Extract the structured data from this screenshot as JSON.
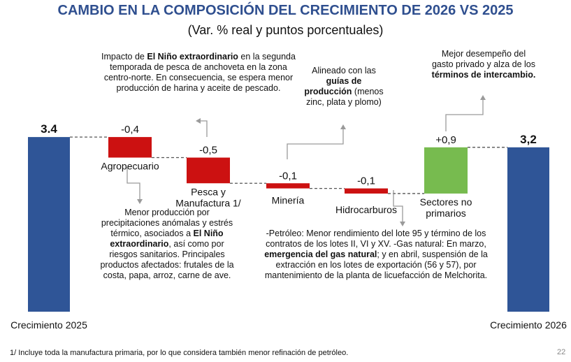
{
  "title": "CAMBIO EN LA COMPOSICIÓN DEL CRECIMIENTO DE 2026 VS 2025",
  "subtitle": "(Var. % real y puntos porcentuales)",
  "chart_data": {
    "type": "bar",
    "subtype": "waterfall",
    "categories": [
      "Crecimiento 2025",
      "Agropecuario",
      "Pesca y Manufactura 1/",
      "Minería",
      "Hidrocarburos",
      "Sectores no primarios",
      "Crecimiento 2026"
    ],
    "values": [
      3.4,
      -0.4,
      -0.5,
      -0.1,
      -0.1,
      0.9,
      3.2
    ],
    "value_labels": [
      "3.4",
      "-0,4",
      "-0,5",
      "-0,1",
      "-0,1",
      "+0,9",
      "3,2"
    ],
    "bar_kinds": [
      "total",
      "delta",
      "delta",
      "delta",
      "delta",
      "delta",
      "total"
    ],
    "colors": {
      "total": "#2f5597",
      "negative": "#cc1111",
      "positive": "#77bb4f",
      "connector": "#555555",
      "arrow": "#9a9a9a",
      "title": "#2f4f8f"
    },
    "category_label_lines": [
      [
        "Crecimiento 2025"
      ],
      [
        "Agropecuario"
      ],
      [
        "Pesca y",
        "Manufactura 1/"
      ],
      [
        "Minería"
      ],
      [
        "Hidrocarburos"
      ],
      [
        "Sectores no",
        "primarios"
      ],
      [
        "Crecimiento 2026"
      ]
    ]
  },
  "annotations": {
    "pesca": [
      {
        "t": "Impacto de "
      },
      {
        "t": "El Niño extraordinario",
        "b": true
      },
      {
        "t": " en la segunda temporada de pesca de anchoveta en la zona centro-norte. En consecuencia, se espera menor producción de harina y aceite de pescado."
      }
    ],
    "mineria": [
      {
        "t": "Alineado con las "
      },
      {
        "t": "guías de producción",
        "b": true
      },
      {
        "t": " (menos zinc, plata y plomo)"
      }
    ],
    "no_primarios": [
      {
        "t": "Mejor desempeño del gasto privado y alza de los "
      },
      {
        "t": "términos de intercambio.",
        "b": true
      }
    ],
    "agro": [
      {
        "t": "Menor producción por precipitaciones anómalas y estrés térmico, asociados a "
      },
      {
        "t": "El Niño extraordinario",
        "b": true
      },
      {
        "t": ", así como por riesgos sanitarios. Principales productos afectados: frutales de la costa, papa, arroz, carne de ave."
      }
    ],
    "hidro": [
      {
        "t": "-Petróleo: Menor rendimiento del lote 95 y término de los contratos de los lotes II, VI y XV. -Gas natural: En marzo, "
      },
      {
        "t": "emergencia del gas natural",
        "b": true
      },
      {
        "t": "; y en abril, suspensión de la extracción en los lotes de exportación (56 y 57), por mantenimiento de la planta de licuefacción de Melchorita."
      }
    ]
  },
  "footnote": "1/ Incluye toda la manufactura primaria, por lo que considera también menor refinación de petróleo.",
  "page_number": "22"
}
